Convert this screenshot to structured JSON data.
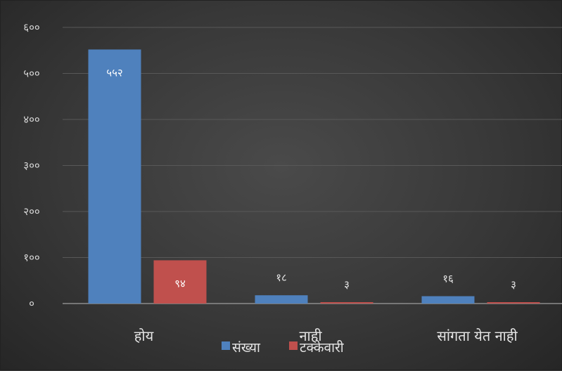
{
  "chart_data": {
    "type": "bar",
    "title": "",
    "xlabel": "",
    "ylabel": "",
    "categories": [
      "होय",
      "नाही",
      "सांगता येत नाही"
    ],
    "series": [
      {
        "name": "संख्या",
        "values": [
          552,
          18,
          16
        ],
        "labels": [
          "५५२",
          "१८",
          "१६"
        ],
        "color": "#4f81bd"
      },
      {
        "name": "टक्केवारी",
        "values": [
          94,
          3,
          3
        ],
        "labels": [
          "९४",
          "३",
          "३"
        ],
        "color": "#c0504d"
      }
    ],
    "ylim": [
      0,
      600
    ],
    "yticks": [
      0,
      100,
      200,
      300,
      400,
      500,
      600
    ],
    "ytick_labels": [
      "०",
      "१००",
      "२००",
      "३००",
      "४००",
      "५००",
      "६००"
    ],
    "grid": true,
    "legend_position": "bottom"
  }
}
